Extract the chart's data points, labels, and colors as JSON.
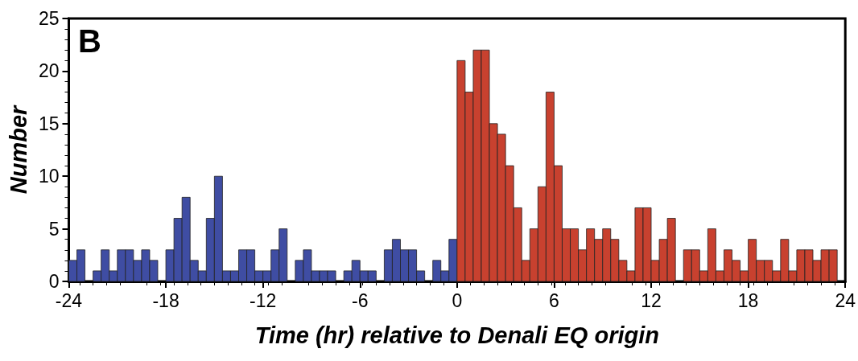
{
  "chart_data": {
    "type": "histogram",
    "title": "B",
    "xlabel": "Time (hr) relative to Denali EQ origin",
    "ylabel": "Number",
    "bins": [
      -24,
      -23.5,
      -23,
      -22.5,
      -22,
      -21.5,
      -21,
      -20.5,
      -20,
      -19.5,
      -19,
      -18.5,
      -18,
      -17.5,
      -17,
      -16.5,
      -16,
      -15.5,
      -15,
      -14.5,
      -14,
      -13.5,
      -13,
      -12.5,
      -12,
      -11.5,
      -11,
      -10.5,
      -10,
      -9.5,
      -9,
      -8.5,
      -8,
      -7.5,
      -7,
      -6.5,
      -6,
      -5.5,
      -5,
      -4.5,
      -4,
      -3.5,
      -3,
      -2.5,
      -2,
      -1.5,
      -1,
      -0.5,
      0,
      0.5,
      1,
      1.5,
      2,
      2.5,
      3,
      3.5,
      4,
      4.5,
      5,
      5.5,
      6,
      6.5,
      7,
      7.5,
      8,
      8.5,
      9,
      9.5,
      10,
      10.5,
      11,
      11.5,
      12,
      12.5,
      13,
      13.5,
      14,
      14.5,
      15,
      15.5,
      16,
      16.5,
      17,
      17.5,
      18,
      18.5,
      19,
      19.5,
      20,
      20.5,
      21,
      21.5,
      22,
      22.5,
      23,
      23.5,
      24
    ],
    "values": [
      2,
      3,
      0,
      1,
      3,
      1,
      3,
      3,
      2,
      3,
      2,
      0,
      3,
      6,
      8,
      2,
      1,
      6,
      10,
      1,
      1,
      3,
      3,
      1,
      1,
      3,
      5,
      0,
      2,
      3,
      1,
      1,
      1,
      0,
      1,
      2,
      1,
      1,
      0,
      3,
      4,
      3,
      3,
      1,
      0,
      2,
      1,
      4,
      21,
      18,
      22,
      22,
      15,
      14,
      11,
      7,
      2,
      5,
      9,
      18,
      11,
      5,
      5,
      3,
      5,
      4,
      5,
      4,
      2,
      1,
      7,
      7,
      2,
      4,
      6,
      0,
      3,
      3,
      1,
      5,
      1,
      3,
      2,
      1,
      4,
      2,
      2,
      1,
      4,
      1,
      3,
      3,
      2,
      3,
      3,
      0
    ],
    "colors": [
      "#3f4da3",
      "#3f4da3",
      null,
      "#3f4da3",
      "#3f4da3",
      "#3f4da3",
      "#3f4da3",
      "#3f4da3",
      "#3f4da3",
      "#3f4da3",
      "#3f4da3",
      null,
      "#3f4da3",
      "#3f4da3",
      "#3f4da3",
      "#3f4da3",
      "#3f4da3",
      "#3f4da3",
      "#3f4da3",
      "#3f4da3",
      "#3f4da3",
      "#3f4da3",
      "#3f4da3",
      "#3f4da3",
      "#3f4da3",
      "#3f4da3",
      "#3f4da3",
      null,
      "#3f4da3",
      "#3f4da3",
      "#3f4da3",
      "#3f4da3",
      "#3f4da3",
      null,
      "#3f4da3",
      "#3f4da3",
      "#3f4da3",
      "#3f4da3",
      null,
      "#3f4da3",
      "#3f4da3",
      "#3f4da3",
      "#3f4da3",
      "#3f4da3",
      null,
      "#3f4da3",
      "#3f4da3",
      "#3f4da3",
      "#c8412f",
      "#c8412f",
      "#c8412f",
      "#c8412f",
      "#c8412f",
      "#c8412f",
      "#c8412f",
      "#c8412f",
      "#c8412f",
      "#c8412f",
      "#c8412f",
      "#c8412f",
      "#c8412f",
      "#c8412f",
      "#c8412f",
      "#c8412f",
      "#c8412f",
      "#c8412f",
      "#c8412f",
      "#c8412f",
      "#c8412f",
      "#c8412f",
      "#c8412f",
      "#c8412f",
      "#c8412f",
      "#c8412f",
      "#c8412f",
      null,
      "#c8412f",
      "#c8412f",
      "#c8412f",
      "#c8412f",
      "#c8412f",
      "#c8412f",
      "#c8412f",
      "#c8412f",
      "#c8412f",
      "#c8412f",
      "#c8412f",
      "#c8412f",
      "#c8412f",
      "#c8412f",
      "#c8412f",
      "#c8412f",
      "#c8412f",
      "#c8412f",
      "#c8412f",
      null
    ],
    "xlim": [
      -24,
      24
    ],
    "xticks": [
      -24,
      -18,
      -12,
      -6,
      0,
      6,
      12,
      18,
      24
    ],
    "ylim": [
      0,
      25
    ],
    "yticks": [
      0,
      5,
      10,
      15,
      20,
      25
    ],
    "grid": false
  }
}
